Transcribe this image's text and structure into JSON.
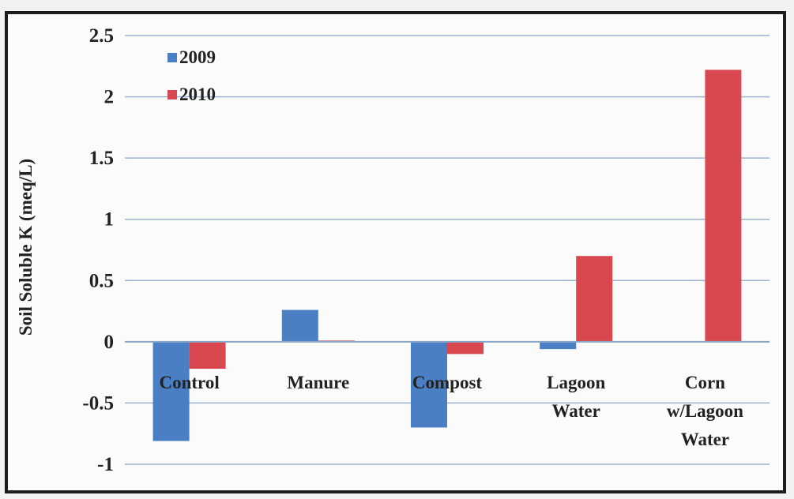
{
  "chart_data": {
    "type": "bar",
    "title": "",
    "xlabel": "",
    "ylabel": "Soil Soluble K (meq/L)",
    "ylim": [
      -1,
      2.5
    ],
    "yticks": [
      "2.5",
      "2",
      "1.5",
      "1",
      "0.5",
      "0",
      "-0.5",
      "-1"
    ],
    "grid": true,
    "legend_position": "top-left",
    "categories": [
      [
        "Control"
      ],
      [
        "Manure"
      ],
      [
        "Compost"
      ],
      [
        "Lagoon",
        "Water"
      ],
      [
        "Corn",
        "w/Lagoon",
        "Water"
      ]
    ],
    "series": [
      {
        "name": "2009",
        "color": "#4a7fc4",
        "values": [
          -0.81,
          0.26,
          -0.7,
          -0.06,
          0
        ]
      },
      {
        "name": "2010",
        "color": "#d9484f",
        "values": [
          -0.22,
          0.01,
          -0.1,
          0.7,
          2.22
        ]
      }
    ]
  }
}
